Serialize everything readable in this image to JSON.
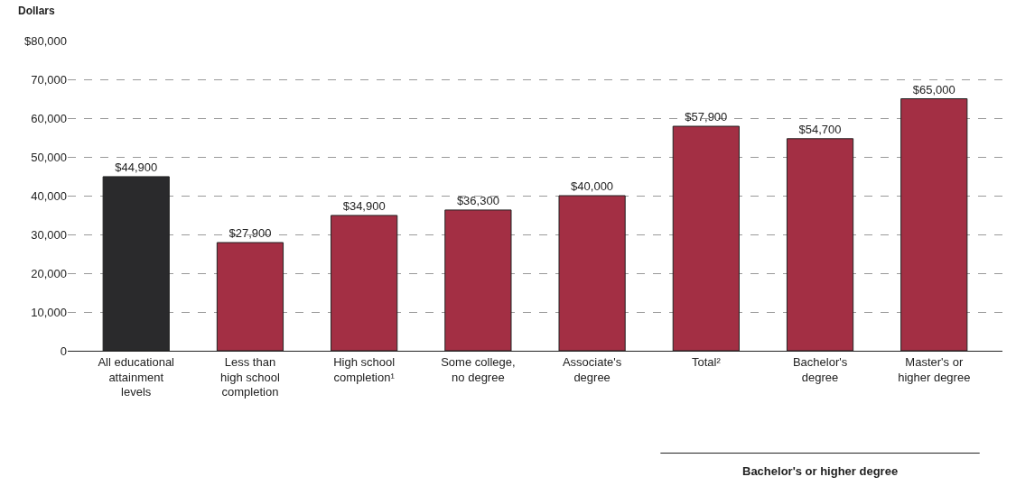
{
  "chart_data": {
    "type": "bar",
    "ylabel": "Dollars",
    "categories": [
      "All educational\nattainment\nlevels",
      "Less than\nhigh school\ncompletion",
      "High school\ncompletion¹",
      "Some college,\nno degree",
      "Associate's\ndegree",
      "Total²",
      "Bachelor's\ndegree",
      "Master's or\nhigher degree"
    ],
    "values": [
      44900,
      27900,
      34900,
      36300,
      40000,
      57900,
      54700,
      65000
    ],
    "value_labels": [
      "$44,900",
      "$27,900",
      "$34,900",
      "$36,300",
      "$40,000",
      "$57,900",
      "$54,700",
      "$65,000"
    ],
    "colors": [
      "#2a2a2c",
      "#a32f44",
      "#a32f44",
      "#a32f44",
      "#a32f44",
      "#a32f44",
      "#a32f44",
      "#a32f44"
    ],
    "ylim": [
      0,
      80000
    ],
    "yticks": [
      {
        "value": 0,
        "label": "0"
      },
      {
        "value": 10000,
        "label": "10,000"
      },
      {
        "value": 20000,
        "label": "20,000"
      },
      {
        "value": 30000,
        "label": "30,000"
      },
      {
        "value": 40000,
        "label": "40,000"
      },
      {
        "value": 50000,
        "label": "50,000"
      },
      {
        "value": 60000,
        "label": "60,000"
      },
      {
        "value": 70000,
        "label": "70,000"
      },
      {
        "value": 80000,
        "label": "$80,000"
      }
    ],
    "grid": "y",
    "legend": false,
    "annotations": [
      "Bachelor's or higher degree"
    ]
  }
}
